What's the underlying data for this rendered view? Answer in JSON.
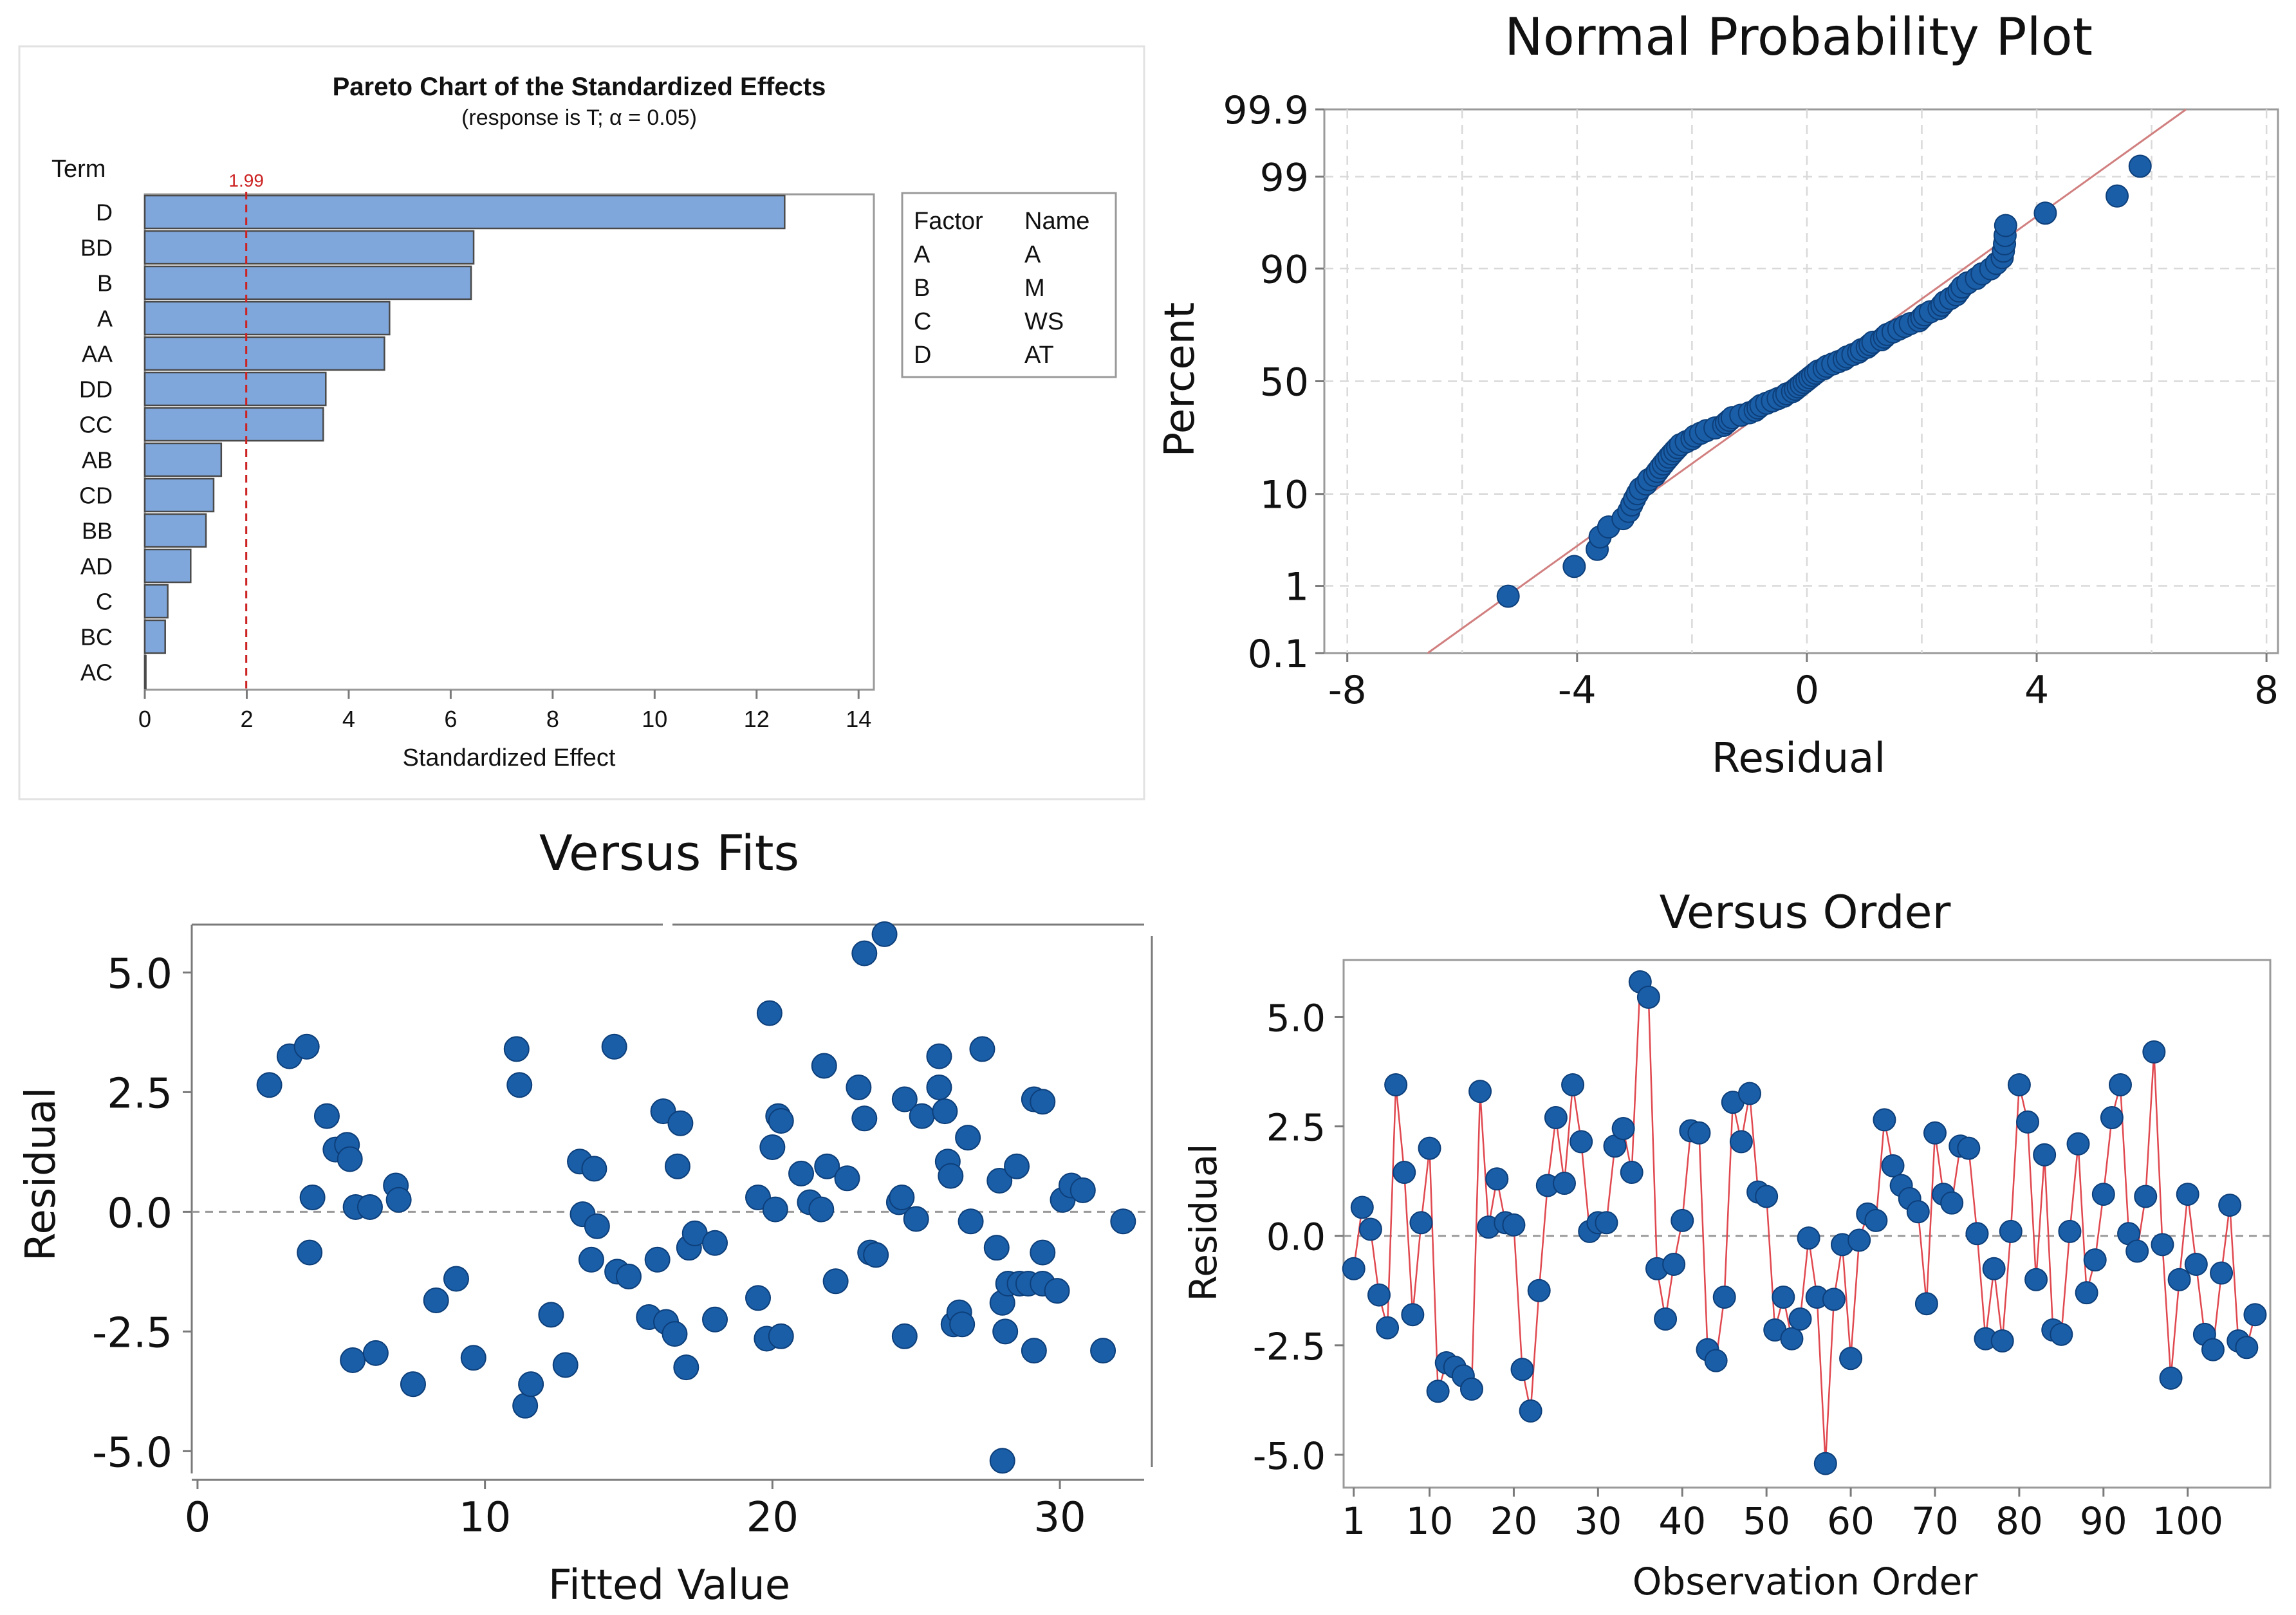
{
  "colors": {
    "bar_fill": "#7fa7dc",
    "point": "#1a5ea8",
    "reference_line": "#cc2222",
    "fit_line": "#d17f7f",
    "order_line": "#e0484f"
  },
  "chart_data": [
    {
      "id": "pareto",
      "type": "bar",
      "orientation": "horizontal",
      "title": "Pareto Chart of the Standardized Effects",
      "subtitle": "(response is T; α = 0.05)",
      "ylabel": "Term",
      "xlabel": "Standardized Effect",
      "categories": [
        "D",
        "BD",
        "B",
        "A",
        "AA",
        "DD",
        "CC",
        "AB",
        "CD",
        "BB",
        "AD",
        "C",
        "BC",
        "AC"
      ],
      "values": [
        12.55,
        6.45,
        6.4,
        4.8,
        4.7,
        3.55,
        3.5,
        1.5,
        1.35,
        1.2,
        0.9,
        0.45,
        0.4,
        0.02
      ],
      "xlim": [
        0,
        14.3
      ],
      "xticks": [
        "0",
        "2",
        "4",
        "6",
        "8",
        "10",
        "12",
        "14"
      ],
      "reference_value": 1.99,
      "reference_label": "1.99",
      "legend": {
        "headers": [
          "Factor",
          "Name"
        ],
        "rows": [
          [
            "A",
            "A"
          ],
          [
            "B",
            "M"
          ],
          [
            "C",
            "WS"
          ],
          [
            "D",
            "AT"
          ]
        ]
      }
    },
    {
      "id": "normal-probability",
      "type": "scatter",
      "title": "Normal Probability Plot",
      "xlabel": "Residual",
      "ylabel": "Percent",
      "xlim": [
        -8.4,
        8.2
      ],
      "xticks": [
        "-8",
        "-4",
        "0",
        "4",
        "8"
      ],
      "yticks": [
        "0.1",
        "1",
        "10",
        "50",
        "90",
        "99",
        "99.9"
      ],
      "ytick_values": [
        0.1,
        1,
        10,
        50,
        90,
        99,
        99.9
      ],
      "fit_line": {
        "x": [
          -6.6,
          6.6
        ],
        "percent": [
          0.1,
          99.9
        ]
      },
      "residuals": [
        -5.2,
        -4.05,
        -3.65,
        -3.6,
        -3.45,
        -3.2,
        -3.1,
        -3.05,
        -3.0,
        -2.95,
        -2.9,
        -2.8,
        -2.75,
        -2.65,
        -2.6,
        -2.55,
        -2.5,
        -2.45,
        -2.4,
        -2.35,
        -2.3,
        -2.25,
        -2.2,
        -2.1,
        -2.0,
        -1.95,
        -1.85,
        -1.75,
        -1.6,
        -1.45,
        -1.4,
        -1.35,
        -1.3,
        -1.15,
        -1.0,
        -0.9,
        -0.85,
        -0.8,
        -0.7,
        -0.6,
        -0.5,
        -0.4,
        -0.35,
        -0.25,
        -0.2,
        -0.15,
        -0.1,
        -0.05,
        0.0,
        0.05,
        0.1,
        0.15,
        0.2,
        0.3,
        0.35,
        0.45,
        0.55,
        0.65,
        0.7,
        0.8,
        0.9,
        0.95,
        1.05,
        1.1,
        1.15,
        1.3,
        1.35,
        1.4,
        1.5,
        1.6,
        1.7,
        1.8,
        1.95,
        2.0,
        2.05,
        2.15,
        2.3,
        2.35,
        2.4,
        2.5,
        2.6,
        2.65,
        2.7,
        2.8,
        2.95,
        3.05,
        3.2,
        3.3,
        3.4,
        3.42,
        3.44,
        3.45,
        3.46,
        4.15,
        5.4,
        5.8
      ]
    },
    {
      "id": "versus-fits",
      "type": "scatter",
      "title": "Versus Fits",
      "xlabel": "Fitted Value",
      "ylabel": "Residual",
      "xlim": [
        -0.2,
        33.2
      ],
      "ylim": [
        -5.6,
        6.0
      ],
      "xticks": [
        "0",
        "10",
        "20",
        "30"
      ],
      "yticks": [
        "-5.0",
        "-2.5",
        "0.0",
        "2.5",
        "5.0"
      ],
      "ytick_values": [
        -5,
        -2.5,
        0,
        2.5,
        5
      ],
      "points": [
        [
          2.5,
          2.65
        ],
        [
          3.2,
          3.25
        ],
        [
          3.8,
          3.45
        ],
        [
          3.9,
          -0.85
        ],
        [
          4.0,
          0.3
        ],
        [
          4.5,
          2.0
        ],
        [
          4.8,
          1.3
        ],
        [
          5.2,
          1.4
        ],
        [
          5.3,
          1.1
        ],
        [
          5.4,
          -3.1
        ],
        [
          5.5,
          0.1
        ],
        [
          6.0,
          0.1
        ],
        [
          6.2,
          -2.95
        ],
        [
          6.9,
          0.55
        ],
        [
          7.0,
          0.25
        ],
        [
          7.5,
          -3.6
        ],
        [
          8.3,
          -1.85
        ],
        [
          9.0,
          -1.4
        ],
        [
          9.6,
          -3.05
        ],
        [
          11.1,
          3.4
        ],
        [
          11.2,
          2.65
        ],
        [
          11.4,
          -4.05
        ],
        [
          11.6,
          -3.6
        ],
        [
          12.3,
          -2.15
        ],
        [
          12.8,
          -3.2
        ],
        [
          13.3,
          1.05
        ],
        [
          13.4,
          -0.05
        ],
        [
          13.7,
          -1.0
        ],
        [
          13.8,
          0.9
        ],
        [
          13.9,
          -0.3
        ],
        [
          14.5,
          3.45
        ],
        [
          14.6,
          -1.25
        ],
        [
          15.0,
          -1.35
        ],
        [
          15.7,
          -2.2
        ],
        [
          16.0,
          -1.0
        ],
        [
          16.2,
          2.1
        ],
        [
          16.3,
          -2.3
        ],
        [
          16.6,
          -2.55
        ],
        [
          16.8,
          1.85
        ],
        [
          16.7,
          0.95
        ],
        [
          17.0,
          -3.25
        ],
        [
          17.1,
          -0.75
        ],
        [
          17.3,
          -0.45
        ],
        [
          18.0,
          -2.25
        ],
        [
          18.0,
          -0.65
        ],
        [
          19.5,
          0.3
        ],
        [
          19.5,
          -1.8
        ],
        [
          19.8,
          -2.65
        ],
        [
          19.9,
          4.15
        ],
        [
          20.0,
          1.35
        ],
        [
          20.1,
          0.05
        ],
        [
          20.2,
          2.0
        ],
        [
          20.3,
          1.9
        ],
        [
          20.3,
          -2.6
        ],
        [
          21.0,
          0.8
        ],
        [
          21.3,
          0.2
        ],
        [
          21.7,
          0.05
        ],
        [
          21.8,
          3.05
        ],
        [
          21.9,
          0.95
        ],
        [
          22.2,
          -1.45
        ],
        [
          22.6,
          0.7
        ],
        [
          23.0,
          2.6
        ],
        [
          23.2,
          1.95
        ],
        [
          23.2,
          5.4
        ],
        [
          23.4,
          -0.85
        ],
        [
          23.6,
          -0.9
        ],
        [
          23.9,
          5.8
        ],
        [
          24.4,
          0.2
        ],
        [
          24.5,
          0.3
        ],
        [
          24.6,
          2.35
        ],
        [
          24.6,
          -2.6
        ],
        [
          25.0,
          -0.15
        ],
        [
          25.2,
          2.0
        ],
        [
          25.8,
          3.25
        ],
        [
          25.8,
          2.6
        ],
        [
          26.0,
          2.1
        ],
        [
          26.1,
          1.05
        ],
        [
          26.2,
          0.75
        ],
        [
          26.3,
          -2.35
        ],
        [
          26.5,
          -2.1
        ],
        [
          26.6,
          -2.35
        ],
        [
          26.8,
          1.55
        ],
        [
          26.9,
          -0.2
        ],
        [
          27.3,
          3.4
        ],
        [
          27.8,
          -0.75
        ],
        [
          27.9,
          0.65
        ],
        [
          28.0,
          -5.2
        ],
        [
          28.0,
          -1.9
        ],
        [
          28.1,
          -2.5
        ],
        [
          28.2,
          -1.5
        ],
        [
          28.5,
          0.95
        ],
        [
          28.6,
          -1.5
        ],
        [
          28.9,
          -1.5
        ],
        [
          29.1,
          2.35
        ],
        [
          29.1,
          -2.9
        ],
        [
          29.4,
          -0.85
        ],
        [
          29.4,
          2.3
        ],
        [
          29.4,
          -1.5
        ],
        [
          29.9,
          -1.65
        ],
        [
          30.1,
          0.25
        ],
        [
          30.4,
          0.55
        ],
        [
          30.8,
          0.45
        ],
        [
          31.5,
          -2.9
        ],
        [
          32.2,
          -0.2
        ]
      ]
    },
    {
      "id": "versus-order",
      "type": "line",
      "title": "Versus Order",
      "xlabel": "Observation Order",
      "ylabel": "Residual",
      "xlim": [
        -0.2,
        109.8
      ],
      "ylim": [
        -5.75,
        6.3
      ],
      "xticks": [
        "1",
        "10",
        "20",
        "30",
        "40",
        "50",
        "60",
        "70",
        "80",
        "90",
        "100"
      ],
      "xtick_values": [
        1,
        10,
        20,
        30,
        40,
        50,
        60,
        70,
        80,
        90,
        100
      ],
      "yticks": [
        "-5.0",
        "-2.5",
        "0.0",
        "2.5",
        "5.0"
      ],
      "ytick_values": [
        -5,
        -2.5,
        0,
        2.5,
        5
      ],
      "values": [
        -0.75,
        0.65,
        0.15,
        -1.35,
        -2.1,
        3.45,
        1.45,
        -1.8,
        0.3,
        2.0,
        -3.55,
        -2.9,
        -3.0,
        -3.2,
        -3.5,
        3.3,
        0.2,
        1.3,
        0.3,
        0.25,
        -3.05,
        -4.0,
        -1.25,
        1.15,
        2.7,
        1.2,
        3.45,
        2.15,
        0.1,
        0.3,
        0.3,
        2.05,
        2.45,
        1.45,
        5.8,
        5.45,
        -0.75,
        -1.9,
        -0.65,
        0.35,
        2.4,
        2.35,
        -2.6,
        -2.85,
        -1.4,
        3.05,
        2.15,
        3.25,
        1.0,
        0.9,
        -2.15,
        -1.4,
        -2.35,
        -1.9,
        -0.05,
        -1.4,
        -5.2,
        -1.45,
        -0.2,
        -2.8,
        -0.1,
        0.5,
        0.35,
        2.65,
        1.6,
        1.15,
        0.85,
        0.55,
        -1.55,
        2.35,
        0.95,
        0.75,
        2.05,
        2.0,
        0.05,
        -2.35,
        -0.75,
        -2.4,
        0.1,
        3.45,
        2.6,
        -1.0,
        1.85,
        -2.15,
        -2.25,
        0.1,
        2.1,
        -1.3,
        -0.55,
        0.95,
        2.7,
        3.45,
        0.05,
        -0.35,
        0.9,
        4.2,
        -0.2,
        -3.25,
        -1.0,
        0.95,
        -0.65,
        -2.25,
        -2.6,
        -0.85,
        0.7,
        -2.4,
        -2.55,
        -1.8
      ]
    }
  ]
}
